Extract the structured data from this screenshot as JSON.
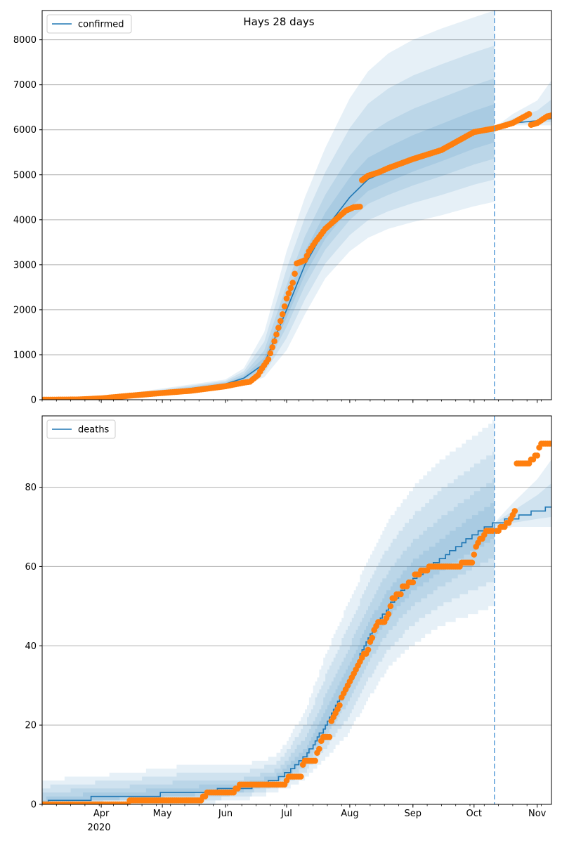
{
  "title": "Hays 28 days",
  "colors": {
    "series": "#1f77b4",
    "observed": "#ff7f0e",
    "band": "#1f77b4",
    "grid": "#b0b0b0",
    "forecast_line": "#5d9fd8"
  },
  "x_axis": {
    "start": "2020-03-03",
    "end": "2020-11-08",
    "month_labels": [
      {
        "date": "2020-04-01",
        "label": "Apr"
      },
      {
        "date": "2020-05-01",
        "label": "May"
      },
      {
        "date": "2020-06-01",
        "label": "Jun"
      },
      {
        "date": "2020-07-01",
        "label": "Jul"
      },
      {
        "date": "2020-08-01",
        "label": "Aug"
      },
      {
        "date": "2020-09-01",
        "label": "Sep"
      },
      {
        "date": "2020-10-01",
        "label": "Oct"
      },
      {
        "date": "2020-11-01",
        "label": "Nov"
      }
    ],
    "year_label": "2020",
    "forecast_start": "2020-10-11"
  },
  "chart_data": [
    {
      "type": "line",
      "legend": "confirmed",
      "legend_position": "upper left",
      "ylim": [
        0,
        8650
      ],
      "yticks": [
        0,
        1000,
        2000,
        3000,
        4000,
        5000,
        6000,
        7000,
        8000
      ],
      "grid": "horizontal",
      "model_anchors": [
        [
          "2020-03-03",
          0
        ],
        [
          "2020-04-01",
          40
        ],
        [
          "2020-05-01",
          170
        ],
        [
          "2020-06-01",
          350
        ],
        [
          "2020-06-10",
          480
        ],
        [
          "2020-06-20",
          800
        ],
        [
          "2020-07-01",
          2000
        ],
        [
          "2020-07-10",
          3000
        ],
        [
          "2020-07-20",
          3800
        ],
        [
          "2020-08-01",
          4500
        ],
        [
          "2020-08-10",
          4900
        ],
        [
          "2020-08-20",
          5100
        ],
        [
          "2020-09-01",
          5350
        ],
        [
          "2020-09-15",
          5600
        ],
        [
          "2020-10-01",
          5900
        ],
        [
          "2020-10-11",
          6050
        ],
        [
          "2020-10-20",
          6150
        ],
        [
          "2020-11-01",
          6200
        ],
        [
          "2020-11-08",
          6250
        ]
      ],
      "band_outer_upper": [
        [
          "2020-03-03",
          0
        ],
        [
          "2020-04-01",
          60
        ],
        [
          "2020-05-01",
          250
        ],
        [
          "2020-06-01",
          450
        ],
        [
          "2020-06-10",
          700
        ],
        [
          "2020-06-20",
          1500
        ],
        [
          "2020-07-01",
          3300
        ],
        [
          "2020-07-10",
          4500
        ],
        [
          "2020-07-20",
          5600
        ],
        [
          "2020-08-01",
          6700
        ],
        [
          "2020-08-10",
          7300
        ],
        [
          "2020-08-20",
          7700
        ],
        [
          "2020-09-01",
          8000
        ],
        [
          "2020-09-15",
          8250
        ],
        [
          "2020-10-01",
          8500
        ],
        [
          "2020-10-11",
          8650
        ]
      ],
      "band_outer_lower": [
        [
          "2020-03-03",
          0
        ],
        [
          "2020-04-01",
          20
        ],
        [
          "2020-05-01",
          100
        ],
        [
          "2020-06-01",
          250
        ],
        [
          "2020-06-10",
          320
        ],
        [
          "2020-06-20",
          500
        ],
        [
          "2020-07-01",
          1100
        ],
        [
          "2020-07-10",
          1900
        ],
        [
          "2020-07-20",
          2700
        ],
        [
          "2020-08-01",
          3300
        ],
        [
          "2020-08-10",
          3600
        ],
        [
          "2020-08-20",
          3800
        ],
        [
          "2020-09-01",
          3950
        ],
        [
          "2020-09-15",
          4100
        ],
        [
          "2020-10-01",
          4300
        ],
        [
          "2020-10-11",
          4400
        ]
      ],
      "post_band_upper": [
        [
          "2020-10-11",
          6050
        ],
        [
          "2020-10-20",
          6350
        ],
        [
          "2020-11-01",
          6650
        ],
        [
          "2020-11-08",
          7100
        ]
      ],
      "post_band_lower": [
        [
          "2020-10-11",
          6050
        ],
        [
          "2020-10-20",
          6100
        ],
        [
          "2020-11-01",
          6100
        ],
        [
          "2020-11-08",
          6100
        ]
      ],
      "observed": [
        [
          "2020-03-03",
          0
        ],
        [
          "2020-03-20",
          5
        ],
        [
          "2020-04-01",
          30
        ],
        [
          "2020-04-15",
          90
        ],
        [
          "2020-05-01",
          150
        ],
        [
          "2020-05-15",
          200
        ],
        [
          "2020-06-01",
          300
        ],
        [
          "2020-06-10",
          380
        ],
        [
          "2020-06-13",
          400
        ],
        [
          "2020-06-17",
          550
        ],
        [
          "2020-06-19",
          700
        ],
        [
          "2020-06-22",
          900
        ],
        [
          "2020-06-25",
          1300
        ],
        [
          "2020-06-29",
          1900
        ],
        [
          "2020-07-01",
          2250
        ],
        [
          "2020-07-04",
          2600
        ],
        [
          "2020-07-05",
          2800
        ],
        [
          "2020-07-06",
          3030
        ],
        [
          "2020-07-10",
          3100
        ],
        [
          "2020-07-12",
          3300
        ],
        [
          "2020-07-15",
          3500
        ],
        [
          "2020-07-20",
          3800
        ],
        [
          "2020-07-25",
          4000
        ],
        [
          "2020-07-30",
          4200
        ],
        [
          "2020-08-03",
          4280
        ],
        [
          "2020-08-06",
          4290
        ],
        [
          "2020-08-07",
          4880
        ],
        [
          "2020-08-10",
          4980
        ],
        [
          "2020-08-15",
          5050
        ],
        [
          "2020-08-20",
          5150
        ],
        [
          "2020-09-01",
          5350
        ],
        [
          "2020-09-15",
          5550
        ],
        [
          "2020-10-01",
          5950
        ],
        [
          "2020-10-11",
          6030
        ],
        [
          "2020-10-20",
          6150
        ],
        [
          "2020-10-28",
          6350
        ],
        [
          "2020-10-29",
          6110
        ],
        [
          "2020-11-01",
          6150
        ],
        [
          "2020-11-06",
          6300
        ],
        [
          "2020-11-08",
          6320
        ]
      ]
    },
    {
      "type": "line",
      "legend": "deaths",
      "legend_position": "upper left",
      "ylim": [
        0,
        98
      ],
      "yticks": [
        0,
        20,
        40,
        60,
        80
      ],
      "grid": "horizontal",
      "model_anchors": [
        [
          "2020-03-03",
          0
        ],
        [
          "2020-03-08",
          1
        ],
        [
          "2020-04-15",
          2
        ],
        [
          "2020-05-15",
          3
        ],
        [
          "2020-06-10",
          4
        ],
        [
          "2020-06-25",
          6
        ],
        [
          "2020-07-01",
          8
        ],
        [
          "2020-07-10",
          12
        ],
        [
          "2020-07-20",
          20
        ],
        [
          "2020-08-01",
          32
        ],
        [
          "2020-08-10",
          42
        ],
        [
          "2020-08-20",
          50
        ],
        [
          "2020-09-01",
          57
        ],
        [
          "2020-09-15",
          62
        ],
        [
          "2020-10-01",
          68
        ],
        [
          "2020-10-11",
          71
        ],
        [
          "2020-10-20",
          72
        ],
        [
          "2020-11-01",
          74
        ],
        [
          "2020-11-08",
          75
        ]
      ],
      "band_outer_upper": [
        [
          "2020-03-03",
          6
        ],
        [
          "2020-04-15",
          8
        ],
        [
          "2020-05-15",
          10
        ],
        [
          "2020-06-10",
          10
        ],
        [
          "2020-06-25",
          12
        ],
        [
          "2020-07-01",
          16
        ],
        [
          "2020-07-10",
          24
        ],
        [
          "2020-07-20",
          38
        ],
        [
          "2020-08-01",
          52
        ],
        [
          "2020-08-10",
          62
        ],
        [
          "2020-08-20",
          72
        ],
        [
          "2020-09-01",
          80
        ],
        [
          "2020-09-15",
          87
        ],
        [
          "2020-10-01",
          93
        ],
        [
          "2020-10-11",
          97
        ]
      ],
      "band_outer_lower": [
        [
          "2020-03-03",
          0
        ],
        [
          "2020-05-15",
          0
        ],
        [
          "2020-06-10",
          1
        ],
        [
          "2020-06-25",
          3
        ],
        [
          "2020-07-01",
          4
        ],
        [
          "2020-07-10",
          6
        ],
        [
          "2020-07-20",
          11
        ],
        [
          "2020-08-01",
          18
        ],
        [
          "2020-08-10",
          26
        ],
        [
          "2020-08-20",
          34
        ],
        [
          "2020-09-01",
          40
        ],
        [
          "2020-09-15",
          45
        ],
        [
          "2020-10-01",
          48
        ],
        [
          "2020-10-11",
          50
        ]
      ],
      "post_band_upper": [
        [
          "2020-10-11",
          71
        ],
        [
          "2020-10-20",
          76
        ],
        [
          "2020-11-01",
          82
        ],
        [
          "2020-11-08",
          87
        ]
      ],
      "post_band_lower": [
        [
          "2020-10-11",
          69
        ],
        [
          "2020-10-20",
          70
        ],
        [
          "2020-11-01",
          70
        ],
        [
          "2020-11-08",
          70
        ]
      ],
      "observed": [
        [
          "2020-03-03",
          0
        ],
        [
          "2020-04-14",
          0
        ],
        [
          "2020-04-15",
          1
        ],
        [
          "2020-05-20",
          1
        ],
        [
          "2020-05-21",
          2
        ],
        [
          "2020-05-24",
          3
        ],
        [
          "2020-06-05",
          3
        ],
        [
          "2020-06-06",
          4
        ],
        [
          "2020-06-10",
          5
        ],
        [
          "2020-06-30",
          5
        ],
        [
          "2020-07-01",
          6
        ],
        [
          "2020-07-03",
          7
        ],
        [
          "2020-07-08",
          7
        ],
        [
          "2020-07-09",
          10
        ],
        [
          "2020-07-10",
          11
        ],
        [
          "2020-07-15",
          11
        ],
        [
          "2020-07-17",
          14
        ],
        [
          "2020-07-19",
          17
        ],
        [
          "2020-07-22",
          17
        ],
        [
          "2020-07-23",
          21
        ],
        [
          "2020-07-26",
          24
        ],
        [
          "2020-07-29",
          28
        ],
        [
          "2020-08-01",
          31
        ],
        [
          "2020-08-05",
          35
        ],
        [
          "2020-08-07",
          37
        ],
        [
          "2020-08-10",
          39
        ],
        [
          "2020-08-13",
          44
        ],
        [
          "2020-08-15",
          46
        ],
        [
          "2020-08-18",
          46
        ],
        [
          "2020-08-20",
          48
        ],
        [
          "2020-08-22",
          52
        ],
        [
          "2020-08-26",
          53
        ],
        [
          "2020-08-27",
          55
        ],
        [
          "2020-09-01",
          56
        ],
        [
          "2020-09-02",
          58
        ],
        [
          "2020-09-08",
          59
        ],
        [
          "2020-09-10",
          60
        ],
        [
          "2020-09-24",
          60
        ],
        [
          "2020-09-25",
          61
        ],
        [
          "2020-09-30",
          61
        ],
        [
          "2020-10-01",
          63
        ],
        [
          "2020-10-03",
          66
        ],
        [
          "2020-10-06",
          68
        ],
        [
          "2020-10-08",
          69
        ],
        [
          "2020-10-12",
          69
        ],
        [
          "2020-10-15",
          70
        ],
        [
          "2020-10-18",
          71
        ],
        [
          "2020-10-21",
          74
        ],
        [
          "2020-10-22",
          86
        ],
        [
          "2020-10-28",
          86
        ],
        [
          "2020-10-29",
          87
        ],
        [
          "2020-11-01",
          88
        ],
        [
          "2020-11-03",
          91
        ],
        [
          "2020-11-08",
          91
        ]
      ]
    }
  ]
}
